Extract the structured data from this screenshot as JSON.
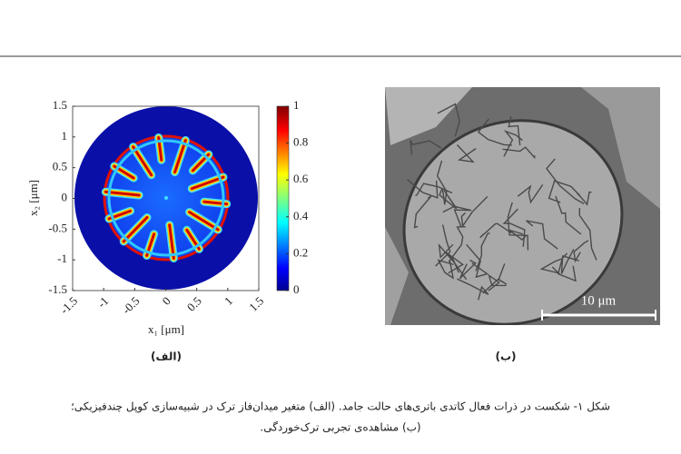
{
  "figure": {
    "panel_a": {
      "label": "(الف)",
      "xlabel": "x₁ [μm]",
      "ylabel": "x₂ [μm]",
      "xlim": [
        -1.5,
        1.5
      ],
      "ylim": [
        -1.5,
        1.5
      ],
      "xticks": [
        -1.5,
        -1,
        -0.5,
        0,
        0.5,
        1,
        1.5
      ],
      "yticks": [
        -1.5,
        -1,
        -0.5,
        0,
        0.5,
        1,
        1.5
      ],
      "colorbar_lim": [
        0,
        1
      ],
      "colorbar_ticks": [
        0,
        0.2,
        0.4,
        0.6,
        0.8,
        1
      ]
    },
    "panel_b": {
      "label": "(ب)",
      "scale_bar": "10 μm"
    },
    "caption": [
      "شکل ۱- شکست در ذرات فعال کاتدی باتری‌های حالت جامد. (الف) متغیر میدان‌فاز ترک در شبیه‌سازی کوپل چندفیزیکی؛",
      "(ب) مشاهده‌ی تجربی ترک‌خوردگی."
    ]
  }
}
